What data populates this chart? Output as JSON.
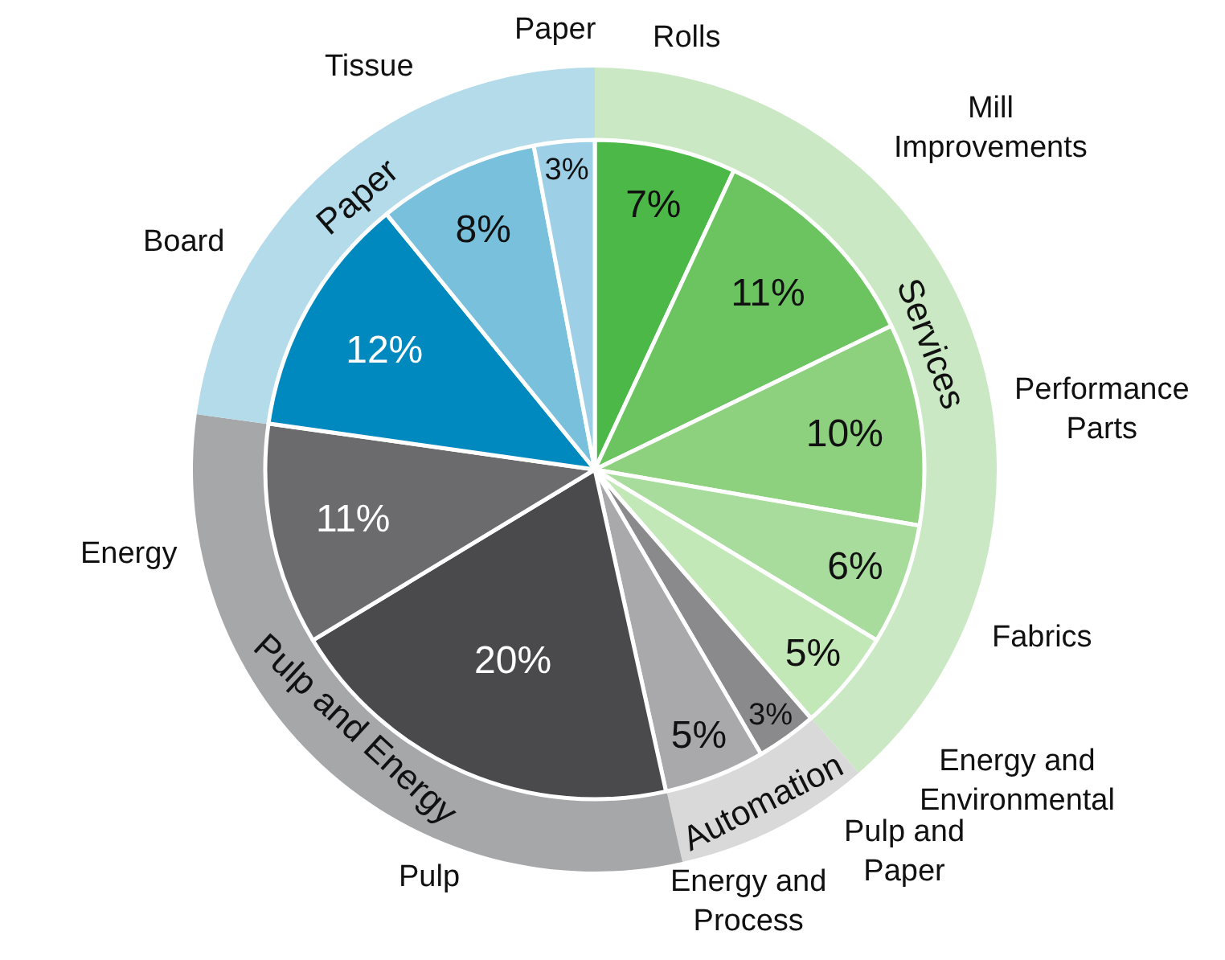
{
  "chart_data": [
    {
      "type": "pie",
      "categories": [
        "Rolls",
        "Mill Improvements",
        "Performance Parts",
        "Fabrics",
        "Energy and Environmental",
        "Pulp and Paper",
        "Energy and Process",
        "Pulp",
        "Energy",
        "Board",
        "Tissue",
        "Paper"
      ],
      "values": [
        7,
        11,
        10,
        6,
        5,
        3,
        5,
        20,
        11,
        12,
        8,
        3
      ],
      "value_labels": [
        "7%",
        "11%",
        "10%",
        "6%",
        "5%",
        "3%",
        "5%",
        "20%",
        "11%",
        "12%",
        "8%",
        "3%"
      ],
      "colors": [
        "#4cb848",
        "#6cc461",
        "#8dd17f",
        "#a8dc9c",
        "#c3e8b8",
        "#8a8a8c",
        "#a9a9ab",
        "#4a4a4c",
        "#6b6b6d",
        "#0089bf",
        "#79c0dc",
        "#9dd0e6"
      ],
      "legend": false
    },
    {
      "type": "donut",
      "categories": [
        "Services",
        "Automation",
        "Pulp and Energy",
        "Paper"
      ],
      "values": [
        38.6,
        7.9,
        30.7,
        22.8
      ],
      "colors": [
        "#cbe8c4",
        "#d9d9d9",
        "#a6a7a9",
        "#b3dbea"
      ],
      "legend": false
    }
  ]
}
